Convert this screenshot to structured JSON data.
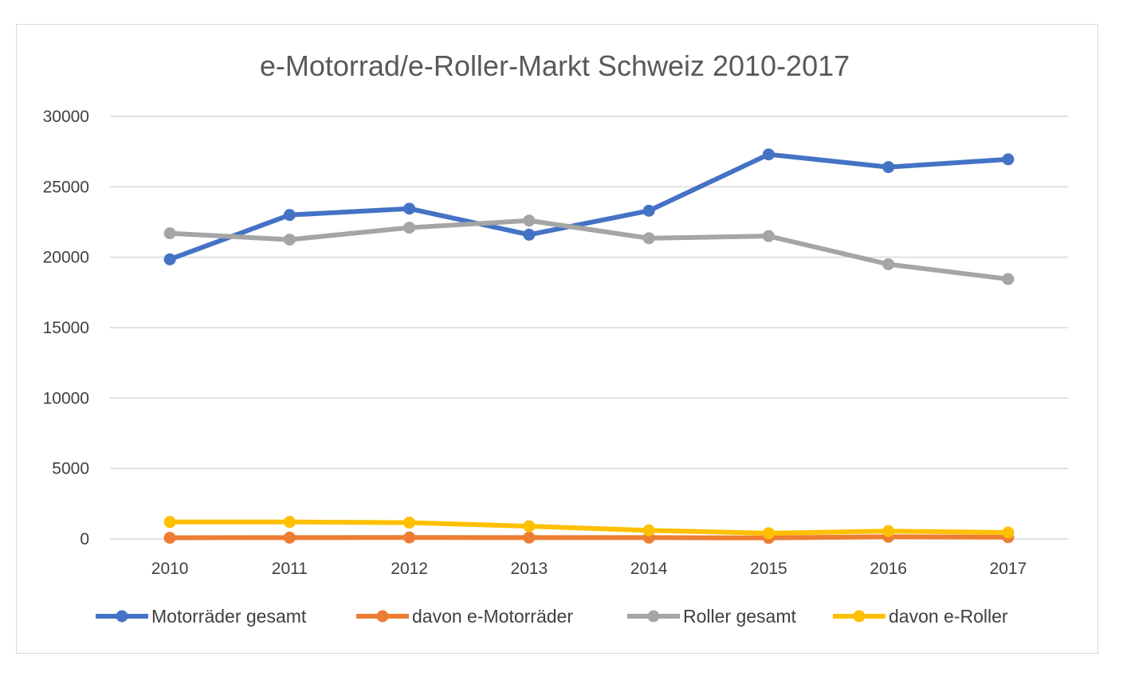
{
  "chart_data": {
    "type": "line",
    "title": "e-Motorrad/e-Roller-Markt Schweiz 2010-2017",
    "categories": [
      "2010",
      "2011",
      "2012",
      "2013",
      "2014",
      "2015",
      "2016",
      "2017"
    ],
    "ylim": [
      0,
      30000
    ],
    "y_ticks": [
      "0",
      "5000",
      "10000",
      "15000",
      "20000",
      "25000",
      "30000"
    ],
    "grid": true,
    "legend_position": "bottom",
    "series": [
      {
        "name": "Motorräder gesamt",
        "color": "#4472C4",
        "values": [
          19850,
          23000,
          23450,
          21600,
          23300,
          27300,
          26400,
          26950
        ]
      },
      {
        "name": "davon e-Motorräder",
        "color": "#ED7D31",
        "values": [
          80,
          90,
          100,
          90,
          90,
          70,
          150,
          120
        ]
      },
      {
        "name": "Roller gesamt",
        "color": "#A5A5A5",
        "values": [
          21700,
          21250,
          22100,
          22600,
          21350,
          21500,
          19500,
          18450
        ]
      },
      {
        "name": "davon e-Roller",
        "color": "#FFC000",
        "values": [
          1200,
          1200,
          1150,
          900,
          600,
          400,
          550,
          450
        ]
      }
    ]
  }
}
